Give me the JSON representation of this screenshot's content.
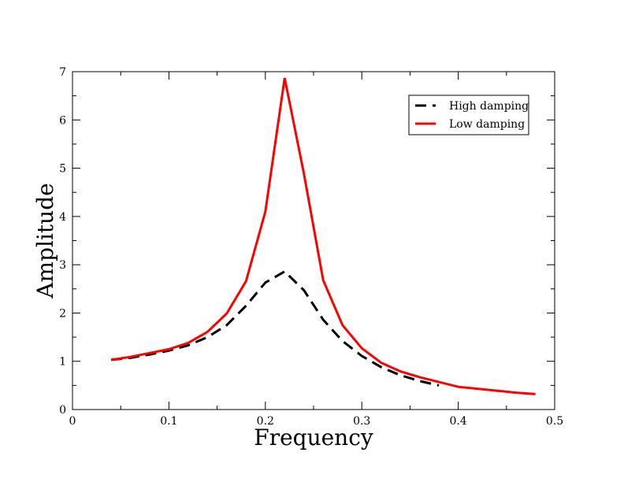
{
  "chart_data": {
    "type": "line",
    "title": "",
    "xlabel": "Frequency",
    "ylabel": "Amplitude",
    "xlim": [
      0,
      0.5
    ],
    "ylim": [
      0,
      7
    ],
    "x_ticks": [
      "0",
      "0.1",
      "0.2",
      "0.3",
      "0.4",
      "0.5"
    ],
    "y_ticks": [
      "0",
      "1",
      "2",
      "3",
      "4",
      "5",
      "6",
      "7"
    ],
    "grid": false,
    "legend_position": "top-right",
    "series": [
      {
        "name": "High damping",
        "color": "#000000",
        "style": "dashed",
        "x": [
          0.04,
          0.06,
          0.08,
          0.1,
          0.12,
          0.14,
          0.16,
          0.18,
          0.2,
          0.22,
          0.24,
          0.26,
          0.28,
          0.3,
          0.32,
          0.34,
          0.36,
          0.38
        ],
        "y": [
          1.03,
          1.07,
          1.14,
          1.22,
          1.33,
          1.5,
          1.75,
          2.15,
          2.63,
          2.86,
          2.47,
          1.86,
          1.42,
          1.11,
          0.88,
          0.71,
          0.59,
          0.5
        ]
      },
      {
        "name": "Low damping",
        "color": "#ff0000",
        "style": "solid",
        "x": [
          0.04,
          0.06,
          0.08,
          0.1,
          0.12,
          0.14,
          0.16,
          0.18,
          0.2,
          0.22,
          0.24,
          0.26,
          0.28,
          0.3,
          0.32,
          0.34,
          0.36,
          0.38,
          0.4,
          0.42,
          0.44,
          0.46,
          0.48
        ],
        "y": [
          1.03,
          1.09,
          1.17,
          1.25,
          1.38,
          1.61,
          1.99,
          2.66,
          4.1,
          6.87,
          4.88,
          2.68,
          1.75,
          1.27,
          0.97,
          0.79,
          0.67,
          0.57,
          0.47,
          0.43,
          0.39,
          0.35,
          0.32
        ]
      }
    ]
  }
}
